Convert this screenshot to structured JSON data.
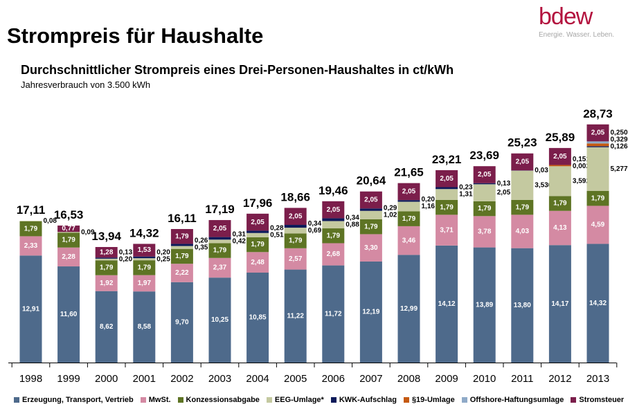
{
  "header": {
    "page_title": "Strompreis für Haushalte",
    "logo_text": "bdew",
    "logo_tagline": "Energie. Wasser. Leben."
  },
  "chart_data": {
    "type": "bar",
    "stacked": true,
    "title": "Durchschnittlicher Strompreis eines Drei-Personen-Haushaltes in ct/kWh",
    "subtitle": "Jahresverbrauch von 3.500 kWh",
    "categories": [
      "1998",
      "1999",
      "2000",
      "2001",
      "2002",
      "2003",
      "2004",
      "2005",
      "2006",
      "2007",
      "2008",
      "2009",
      "2010",
      "2011",
      "2012",
      "2013"
    ],
    "totals": [
      "17,11",
      "16,53",
      "13,94",
      "14,32",
      "16,11",
      "17,19",
      "17,96",
      "18,66",
      "19,46",
      "20,64",
      "21,65",
      "23,21",
      "23,69",
      "25,23",
      "25,89",
      "28,73"
    ],
    "ylim": [
      0,
      30
    ],
    "series": [
      {
        "name": "Erzeugung, Transport, Vertrieb",
        "color": "#4e6a8b",
        "label_color": "#ffffff",
        "side": false,
        "values": [
          12.91,
          11.6,
          8.62,
          8.58,
          9.7,
          10.25,
          10.85,
          11.22,
          11.72,
          12.19,
          12.99,
          14.12,
          13.89,
          13.8,
          14.17,
          14.32
        ],
        "labels": [
          "12,91",
          "11,60",
          "8,62",
          "8,58",
          "9,70",
          "10,25",
          "10,85",
          "11,22",
          "11,72",
          "12,19",
          "12,99",
          "14,12",
          "13,89",
          "13,80",
          "14,17",
          "14,32"
        ]
      },
      {
        "name": "MwSt.",
        "color": "#d48aa3",
        "label_color": "#ffffff",
        "side": false,
        "values": [
          2.33,
          2.28,
          1.92,
          1.97,
          2.22,
          2.37,
          2.48,
          2.57,
          2.68,
          3.3,
          3.46,
          3.71,
          3.78,
          4.03,
          4.13,
          4.59
        ],
        "labels": [
          "2,33",
          "2,28",
          "1,92",
          "1,97",
          "2,22",
          "2,37",
          "2,48",
          "2,57",
          "2,68",
          "3,30",
          "3,46",
          "3,71",
          "3,78",
          "4,03",
          "4,13",
          "4,59"
        ]
      },
      {
        "name": "Konzessionsabgabe",
        "color": "#5e7424",
        "label_color": "#ffffff",
        "side": false,
        "values": [
          1.79,
          1.79,
          1.79,
          1.79,
          1.79,
          1.79,
          1.79,
          1.79,
          1.79,
          1.79,
          1.79,
          1.79,
          1.79,
          1.79,
          1.79,
          1.79
        ],
        "labels": [
          "1,79",
          "1,79",
          "1,79",
          "1,79",
          "1,79",
          "1,79",
          "1,79",
          "1,79",
          "1,79",
          "1,79",
          "1,79",
          "1,79",
          "1,79",
          "1,79",
          "1,79",
          "1,79"
        ]
      },
      {
        "name": "EEG-Umlage*",
        "color": "#c4c9a0",
        "label_color": "#000000",
        "side": true,
        "values": [
          0.08,
          0.09,
          0.2,
          0.25,
          0.35,
          0.42,
          0.51,
          0.69,
          0.88,
          1.02,
          1.16,
          1.31,
          2.05,
          3.53,
          3.592,
          5.277
        ],
        "labels": [
          "0,08",
          "0,09",
          "0,20",
          "0,25",
          "0,35",
          "0,42",
          "0,51",
          "0,69",
          "0,88",
          "1,02",
          "1,16",
          "1,31",
          "2,05",
          "3,530",
          "3,592",
          "5,277"
        ]
      },
      {
        "name": "KWK-Aufschlag",
        "color": "#0d1a5a",
        "label_color": "#ffffff",
        "side": true,
        "values": [
          0,
          0,
          0.13,
          0.2,
          0.26,
          0.31,
          0.28,
          0.34,
          0.34,
          0.29,
          0.2,
          0.23,
          0.13,
          0.03,
          0.002,
          0.126
        ],
        "labels": [
          "",
          "",
          "0,13",
          "0,20",
          "0,26",
          "0,31",
          "0,28",
          "0,34",
          "0,34",
          "0,29",
          "0,20",
          "0,23",
          "0,13",
          "0,03",
          "0,002",
          "0,126"
        ]
      },
      {
        "name": "§19-Umlage",
        "color": "#c55a11",
        "label_color": "#ffffff",
        "side": true,
        "values": [
          0,
          0,
          0,
          0,
          0,
          0,
          0,
          0,
          0,
          0,
          0,
          0,
          0,
          0,
          0.151,
          0.329
        ],
        "labels": [
          "",
          "",
          "",
          "",
          "",
          "",
          "",
          "",
          "",
          "",
          "",
          "",
          "",
          "",
          "0,151",
          "0,329"
        ]
      },
      {
        "name": "Offshore-Haftungsumlage",
        "color": "#8faac8",
        "label_color": "#ffffff",
        "side": true,
        "values": [
          0,
          0,
          0,
          0,
          0,
          0,
          0,
          0,
          0,
          0,
          0,
          0,
          0,
          0,
          0,
          0.25
        ],
        "labels": [
          "",
          "",
          "",
          "",
          "",
          "",
          "",
          "",
          "",
          "",
          "",
          "",
          "",
          "",
          "",
          "0,250"
        ]
      },
      {
        "name": "Stromsteuer",
        "color": "#7b1e4b",
        "label_color": "#ffffff",
        "side": false,
        "values": [
          0,
          0.77,
          1.28,
          1.53,
          1.79,
          2.05,
          2.05,
          2.05,
          2.05,
          2.05,
          2.05,
          2.05,
          2.05,
          2.05,
          2.05,
          2.05
        ],
        "labels": [
          "",
          "0,77",
          "1,28",
          "1,53",
          "1,79",
          "2,05",
          "2,05",
          "2,05",
          "2,05",
          "2,05",
          "2,05",
          "2,05",
          "2,05",
          "2,05",
          "2,05",
          "2,05"
        ]
      }
    ]
  }
}
